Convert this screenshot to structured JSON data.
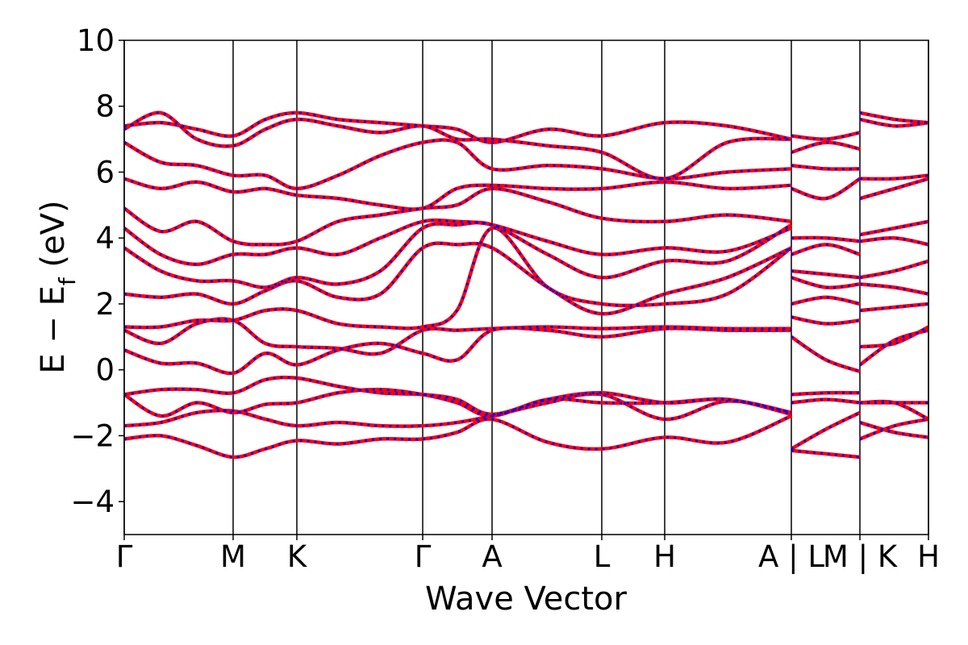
{
  "chart_data": {
    "type": "band",
    "xlabel": "Wave Vector",
    "ylabel_parts": [
      "E − E",
      "f",
      " (eV)"
    ],
    "xlim": [
      0,
      3.988
    ],
    "ylim": [
      -5,
      10
    ],
    "yticks": [
      {
        "value": -4,
        "label": "−4"
      },
      {
        "value": -2,
        "label": "−2"
      },
      0,
      2,
      4,
      6,
      8,
      10
    ],
    "xticks": [
      {
        "value": 0,
        "label": "Γ"
      },
      {
        "value": 0.54,
        "label": "M"
      },
      {
        "value": 0.856,
        "label": "K"
      },
      {
        "value": 1.48,
        "label": "Γ"
      },
      {
        "value": 1.824,
        "label": "A"
      },
      {
        "value": 2.368,
        "label": "L"
      },
      {
        "value": 2.68,
        "label": "H"
      },
      {
        "value": 3.308,
        "label": "A | L"
      },
      {
        "value": 3.648,
        "label": "M | K"
      },
      {
        "value": 3.988,
        "label": "H"
      }
    ],
    "x": [
      0,
      0.18,
      0.36,
      0.54,
      0.7,
      0.856,
      1.06,
      1.27,
      1.48,
      1.65,
      1.824,
      2.1,
      2.368,
      2.68,
      2.99,
      3.308,
      3.308,
      3.308,
      3.48,
      3.648,
      3.648,
      3.648,
      3.82,
      3.988
    ],
    "series": [
      {
        "color": "#ff0000",
        "style": "solid",
        "bands": [
          [
            -2.1,
            -2.0,
            -2.3,
            -2.65,
            -2.4,
            -2.15,
            -2.25,
            -2.1,
            -2.1,
            -1.9,
            -1.5,
            -2.2,
            -2.4,
            -2.05,
            -2.2,
            -1.4,
            null,
            -2.4,
            -1.8,
            -1.3,
            null,
            -2.1,
            -1.7,
            -1.5
          ],
          [
            -1.7,
            -1.6,
            -1.3,
            -1.25,
            -1.5,
            -1.7,
            -1.6,
            -1.7,
            -1.7,
            -1.6,
            -1.4,
            -1.0,
            -0.75,
            -1.5,
            -0.95,
            -1.3,
            null,
            -2.45,
            -2.55,
            -2.65,
            null,
            -1.6,
            -1.9,
            -2.05
          ],
          [
            -0.75,
            -1.4,
            -1.0,
            -1.3,
            -1.05,
            -1.0,
            -0.7,
            -0.6,
            -0.75,
            -1.0,
            -1.4,
            -0.9,
            -1.0,
            -1.0,
            -0.9,
            -1.3,
            null,
            -1.0,
            -0.9,
            -1.0,
            null,
            -1.0,
            -1.0,
            -1.0
          ],
          [
            -0.75,
            -0.6,
            -0.6,
            -0.7,
            -0.3,
            -0.25,
            -0.5,
            -0.7,
            -0.75,
            -0.9,
            -1.35,
            -0.9,
            -0.7,
            -1.0,
            -0.9,
            -1.35,
            null,
            -0.75,
            -0.7,
            -0.7,
            null,
            -1.0,
            -1.0,
            -1.5
          ],
          [
            0.6,
            0.2,
            0.2,
            -0.1,
            0.5,
            0.15,
            0.6,
            0.8,
            0.5,
            0.3,
            1.2,
            1.2,
            1.0,
            1.25,
            1.2,
            1.2,
            null,
            1.0,
            0.3,
            -0.05,
            null,
            0.15,
            0.9,
            1.2
          ],
          [
            1.2,
            0.8,
            1.4,
            1.5,
            0.8,
            0.7,
            0.65,
            0.5,
            1.2,
            1.2,
            1.25,
            1.3,
            1.25,
            1.3,
            1.25,
            1.25,
            null,
            1.6,
            1.4,
            1.5,
            null,
            0.7,
            0.8,
            1.3
          ],
          [
            1.3,
            1.3,
            1.5,
            1.5,
            1.8,
            1.8,
            1.4,
            1.3,
            1.3,
            1.8,
            4.3,
            2.5,
            2.0,
            2.0,
            2.3,
            3.7,
            null,
            2.0,
            2.2,
            2.0,
            null,
            1.8,
            1.9,
            2.0
          ],
          [
            2.3,
            2.2,
            2.3,
            2.0,
            2.4,
            2.7,
            2.2,
            2.3,
            3.7,
            3.8,
            3.7,
            2.5,
            1.7,
            2.3,
            2.8,
            3.7,
            null,
            2.8,
            2.5,
            2.6,
            null,
            2.6,
            2.5,
            2.3
          ],
          [
            3.7,
            3.0,
            2.7,
            2.7,
            2.5,
            2.8,
            2.6,
            3.0,
            4.3,
            4.4,
            4.4,
            3.5,
            2.8,
            3.3,
            3.3,
            4.4,
            null,
            3.0,
            2.9,
            2.8,
            null,
            2.8,
            3.0,
            3.3
          ],
          [
            4.3,
            3.5,
            3.2,
            3.5,
            3.5,
            3.7,
            3.5,
            4.0,
            4.5,
            4.5,
            4.4,
            3.9,
            3.5,
            3.7,
            3.6,
            4.3,
            null,
            3.5,
            3.8,
            3.5,
            null,
            3.9,
            4.0,
            3.8
          ],
          [
            4.9,
            4.2,
            4.5,
            3.9,
            3.8,
            3.9,
            4.5,
            4.7,
            4.9,
            5.0,
            5.5,
            5.1,
            4.6,
            4.5,
            4.7,
            4.5,
            null,
            4.0,
            4.0,
            3.9,
            null,
            4.1,
            4.3,
            4.5
          ],
          [
            5.8,
            5.5,
            5.7,
            5.4,
            5.5,
            5.3,
            5.2,
            5.0,
            4.9,
            5.5,
            5.6,
            5.5,
            5.5,
            5.7,
            5.5,
            5.6,
            null,
            5.5,
            5.2,
            5.8,
            null,
            5.2,
            5.5,
            5.8
          ],
          [
            6.9,
            6.3,
            6.2,
            5.9,
            5.9,
            5.5,
            5.9,
            6.5,
            6.9,
            6.9,
            6.1,
            6.2,
            6.1,
            5.8,
            6.0,
            6.1,
            null,
            6.2,
            6.1,
            6.1,
            null,
            5.8,
            5.8,
            5.9
          ],
          [
            7.3,
            7.8,
            7.0,
            6.8,
            7.3,
            7.6,
            7.4,
            7.2,
            7.4,
            7.0,
            7.0,
            6.8,
            6.6,
            5.8,
            6.9,
            7.0,
            null,
            6.6,
            6.9,
            6.7,
            null,
            7.6,
            7.4,
            7.5
          ],
          [
            7.4,
            7.5,
            7.3,
            7.1,
            7.6,
            7.8,
            7.6,
            7.5,
            7.4,
            7.3,
            6.9,
            7.3,
            7.1,
            7.5,
            7.4,
            7.0,
            null,
            7.1,
            7.0,
            7.2,
            null,
            7.8,
            7.6,
            7.5
          ]
        ]
      },
      {
        "color": "#0000ff",
        "style": "dotted",
        "bands": [
          [
            -2.1,
            -2.0,
            -2.3,
            -2.65,
            -2.4,
            -2.15,
            -2.25,
            -2.1,
            -2.1,
            -1.9,
            -1.5,
            -2.2,
            -2.4,
            -2.05,
            -2.2,
            -1.4,
            null,
            -2.4,
            -1.8,
            -1.3,
            null,
            -2.1,
            -1.7,
            -1.5
          ],
          [
            -1.7,
            -1.6,
            -1.3,
            -1.25,
            -1.5,
            -1.7,
            -1.6,
            -1.7,
            -1.7,
            -1.6,
            -1.4,
            -1.0,
            -0.75,
            -1.5,
            -0.95,
            -1.3,
            null,
            -2.45,
            -2.55,
            -2.65,
            null,
            -1.6,
            -1.9,
            -2.05
          ],
          [
            -0.75,
            -1.4,
            -1.0,
            -1.3,
            -1.05,
            -1.0,
            -0.7,
            -0.6,
            -0.75,
            -1.0,
            -1.4,
            -0.9,
            -1.0,
            -1.0,
            -0.9,
            -1.3,
            null,
            -1.0,
            -0.9,
            -1.0,
            null,
            -1.0,
            -1.0,
            -1.0
          ],
          [
            -0.75,
            -0.6,
            -0.6,
            -0.7,
            -0.3,
            -0.25,
            -0.5,
            -0.7,
            -0.75,
            -0.9,
            -1.35,
            -0.9,
            -0.7,
            -1.0,
            -0.9,
            -1.35,
            null,
            -0.75,
            -0.7,
            -0.7,
            null,
            -1.0,
            -1.0,
            -1.5
          ],
          [
            0.6,
            0.2,
            0.2,
            -0.1,
            0.5,
            0.15,
            0.6,
            0.8,
            0.5,
            0.3,
            1.2,
            1.2,
            1.0,
            1.25,
            1.2,
            1.2,
            null,
            1.0,
            0.3,
            -0.05,
            null,
            0.15,
            0.9,
            1.2
          ],
          [
            1.2,
            0.8,
            1.4,
            1.5,
            0.8,
            0.7,
            0.65,
            0.5,
            1.2,
            1.2,
            1.25,
            1.3,
            1.25,
            1.3,
            1.25,
            1.25,
            null,
            1.6,
            1.4,
            1.5,
            null,
            0.7,
            0.8,
            1.3
          ],
          [
            1.3,
            1.3,
            1.5,
            1.5,
            1.8,
            1.8,
            1.4,
            1.3,
            1.3,
            1.8,
            4.3,
            2.5,
            2.0,
            2.0,
            2.3,
            3.7,
            null,
            2.0,
            2.2,
            2.0,
            null,
            1.8,
            1.9,
            2.0
          ],
          [
            2.3,
            2.2,
            2.3,
            2.0,
            2.4,
            2.7,
            2.2,
            2.3,
            3.7,
            3.8,
            3.7,
            2.5,
            1.7,
            2.3,
            2.8,
            3.7,
            null,
            2.8,
            2.5,
            2.6,
            null,
            2.6,
            2.5,
            2.3
          ],
          [
            3.7,
            3.0,
            2.7,
            2.7,
            2.5,
            2.8,
            2.6,
            3.0,
            4.3,
            4.4,
            4.4,
            3.5,
            2.8,
            3.3,
            3.3,
            4.4,
            null,
            3.0,
            2.9,
            2.8,
            null,
            2.8,
            3.0,
            3.3
          ],
          [
            4.3,
            3.5,
            3.2,
            3.5,
            3.5,
            3.7,
            3.5,
            4.0,
            4.5,
            4.5,
            4.4,
            3.9,
            3.5,
            3.7,
            3.6,
            4.3,
            null,
            3.5,
            3.8,
            3.5,
            null,
            3.9,
            4.0,
            3.8
          ],
          [
            4.9,
            4.2,
            4.5,
            3.9,
            3.8,
            3.9,
            4.5,
            4.7,
            4.9,
            5.0,
            5.5,
            5.1,
            4.6,
            4.5,
            4.7,
            4.5,
            null,
            4.0,
            4.0,
            3.9,
            null,
            4.1,
            4.3,
            4.5
          ],
          [
            5.8,
            5.5,
            5.7,
            5.4,
            5.5,
            5.3,
            5.2,
            5.0,
            4.9,
            5.5,
            5.6,
            5.5,
            5.5,
            5.7,
            5.5,
            5.6,
            null,
            5.5,
            5.2,
            5.8,
            null,
            5.2,
            5.5,
            5.8
          ],
          [
            6.9,
            6.3,
            6.2,
            5.9,
            5.9,
            5.5,
            5.9,
            6.5,
            6.9,
            6.9,
            6.1,
            6.2,
            6.1,
            5.8,
            6.0,
            6.1,
            null,
            6.2,
            6.1,
            6.1,
            null,
            5.8,
            5.8,
            5.9
          ],
          [
            7.3,
            7.8,
            7.0,
            6.8,
            7.3,
            7.6,
            7.4,
            7.2,
            7.4,
            7.0,
            7.0,
            6.8,
            6.6,
            5.8,
            6.9,
            7.0,
            null,
            6.6,
            6.9,
            6.7,
            null,
            7.6,
            7.4,
            7.5
          ],
          [
            7.4,
            7.5,
            7.3,
            7.1,
            7.6,
            7.8,
            7.6,
            7.5,
            7.4,
            7.3,
            6.9,
            7.3,
            7.1,
            7.5,
            7.4,
            7.0,
            null,
            7.1,
            7.0,
            7.2,
            null,
            7.8,
            7.6,
            7.5
          ]
        ]
      }
    ]
  }
}
